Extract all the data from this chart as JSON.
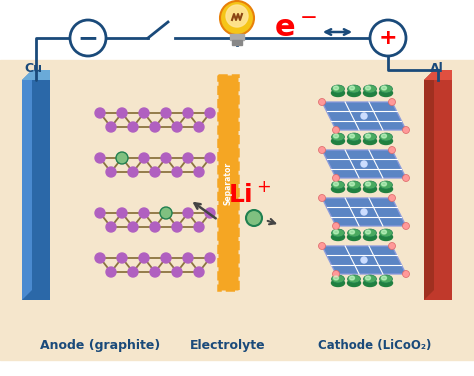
{
  "bg_color": "#f5e6cc",
  "white_bg": "#ffffff",
  "anode_color_top": "#2a5fa8",
  "anode_color_bot": "#1a3a6a",
  "cathode_color": "#c0392b",
  "separator_color": "#f5a623",
  "node_purple": "#b060c0",
  "node_green_fill": "#80c080",
  "node_green_outline": "#208050",
  "wire_color": "#1a4a7a",
  "label_anode": "Anode (graphite)",
  "label_electrolyte": "Electrolyte",
  "label_cathode": "Cathode (LiCoO₂)",
  "label_separator": "Separator",
  "label_cu": "Cu",
  "label_al": "Al",
  "graphite_line_color": "#8B7340",
  "cathode_blue": "#4a7bc4",
  "cathode_grid_color": "#ffffff",
  "cathode_dot_color": "#ffaaaa",
  "green_cyl_top": "#4aaa60",
  "green_cyl_bot": "#208040",
  "bulb_color": "#f5c518",
  "bulb_orange": "#e8800a",
  "e_arrow_color": "#1a4a7a"
}
